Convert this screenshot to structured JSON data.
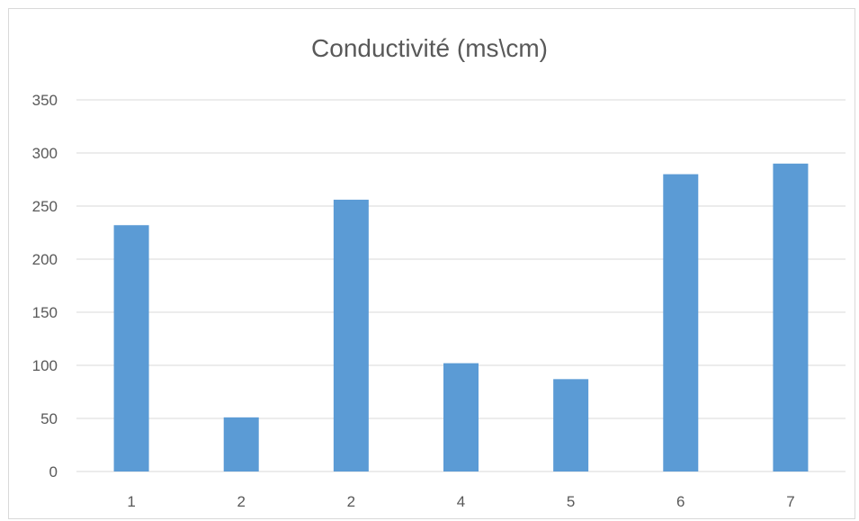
{
  "chart_data": {
    "type": "bar",
    "title": "Conductivité (ms\\cm)",
    "categories": [
      "1",
      "2",
      "2",
      "4",
      "5",
      "6",
      "7"
    ],
    "series": [
      {
        "values": [
          232,
          51,
          256,
          102,
          87,
          280,
          290
        ],
        "color": "#5b9bd5"
      }
    ],
    "ylim": [
      0,
      350
    ],
    "yticks": [
      0,
      50,
      100,
      150,
      200,
      250,
      300,
      350
    ],
    "grid": true,
    "legend": "none",
    "xlabel": "",
    "ylabel": ""
  },
  "colors": {
    "bar": "#5b9bd5",
    "grid": "#d9d9d9",
    "text": "#595959"
  }
}
